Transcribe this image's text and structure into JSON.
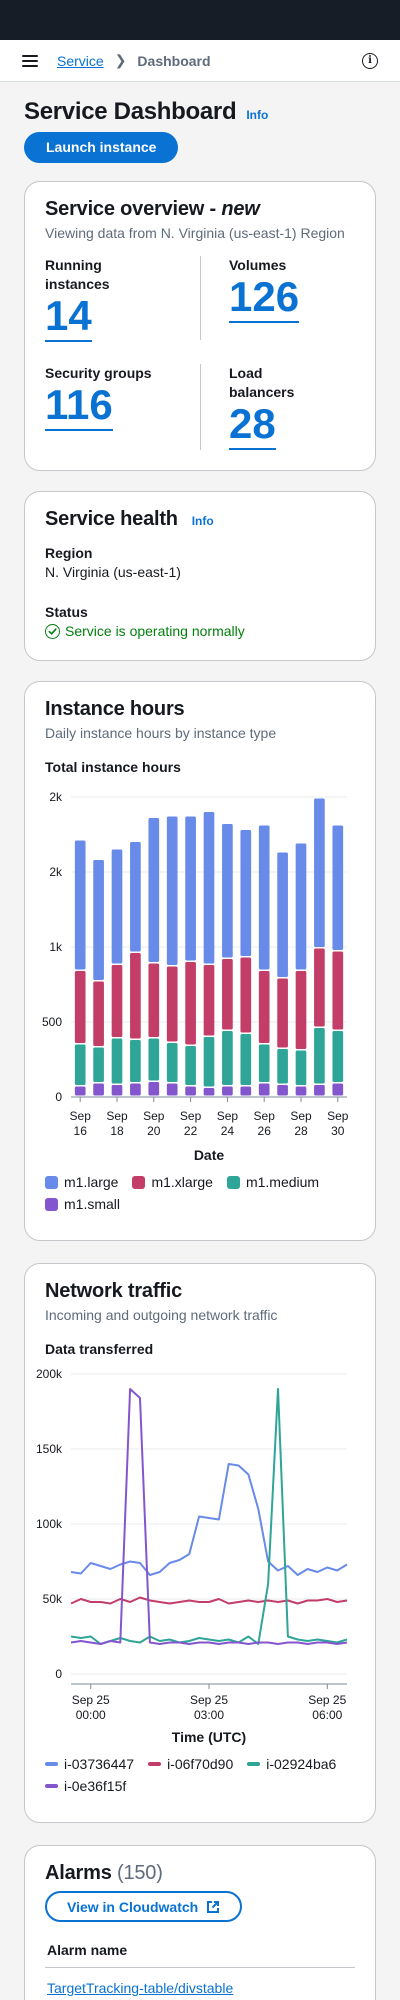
{
  "breadcrumb": {
    "service": "Service",
    "current": "Dashboard"
  },
  "header": {
    "title": "Service Dashboard",
    "info": "Info",
    "launch_button": "Launch instance"
  },
  "overview": {
    "title": "Service overview - ",
    "title_em": "new",
    "description": "Viewing data from N. Virginia (us-east-1) Region",
    "items": [
      {
        "label": "Running instances",
        "value": "14"
      },
      {
        "label": "Volumes",
        "value": "126"
      },
      {
        "label": "Security groups",
        "value": "116"
      },
      {
        "label": "Load balancers",
        "value": "28"
      }
    ]
  },
  "health": {
    "title": "Service health",
    "info": "Info",
    "region_label": "Region",
    "region_value": "N. Virginia (us-east-1)",
    "status_label": "Status",
    "status_value": "Service is operating normally"
  },
  "colors": {
    "accent": "#0972d3",
    "m1_large": "#688ae8",
    "m1_xlarge": "#c33d69",
    "m1_medium": "#2ea597",
    "m1_small": "#8456ce",
    "success": "#037f0c"
  },
  "instance_hours": {
    "title": "Instance hours",
    "description": "Daily instance hours by instance type",
    "subtitle": "Total instance hours"
  },
  "network": {
    "title": "Network traffic",
    "description": "Incoming and outgoing network traffic",
    "subtitle": "Data transferred"
  },
  "alarms": {
    "title": "Alarms",
    "count": "(150)",
    "button": "View in Cloudwatch",
    "column": "Alarm name",
    "first_row": "TargetTracking-table/divstable"
  },
  "chart_data": [
    {
      "type": "bar",
      "stacked": true,
      "xlabel": "Date",
      "ylabel": "",
      "ylim": [
        0,
        2000
      ],
      "y_ticks": [
        0,
        500,
        1000,
        1500,
        2000
      ],
      "y_tick_labels": [
        "0",
        "500",
        "1k",
        "2k",
        "2k"
      ],
      "categories": [
        "Sep 16",
        "Sep 17",
        "Sep 18",
        "Sep 19",
        "Sep 20",
        "Sep 21",
        "Sep 22",
        "Sep 23",
        "Sep 24",
        "Sep 25",
        "Sep 26",
        "Sep 27",
        "Sep 28",
        "Sep 29",
        "Sep 30"
      ],
      "x_tick_labels": [
        "Sep 16",
        "Sep 18",
        "Sep 20",
        "Sep 22",
        "Sep 24",
        "Sep 26",
        "Sep 28",
        "Sep 30"
      ],
      "series": [
        {
          "name": "m1.small",
          "color_key": "m1_small",
          "values": [
            70,
            90,
            80,
            90,
            100,
            90,
            70,
            60,
            70,
            70,
            90,
            80,
            70,
            80,
            90
          ]
        },
        {
          "name": "m1.medium",
          "color_key": "m1_medium",
          "values": [
            280,
            240,
            310,
            290,
            290,
            270,
            270,
            340,
            370,
            350,
            260,
            240,
            240,
            380,
            350
          ]
        },
        {
          "name": "m1.xlarge",
          "color_key": "m1_xlarge",
          "values": [
            490,
            440,
            490,
            580,
            500,
            510,
            560,
            480,
            480,
            510,
            490,
            470,
            530,
            530,
            530
          ]
        },
        {
          "name": "m1.large",
          "color_key": "m1_large",
          "values": [
            870,
            810,
            770,
            740,
            970,
            1000,
            970,
            1020,
            900,
            850,
            970,
            840,
            850,
            1000,
            840
          ]
        }
      ],
      "legend": "bottom"
    },
    {
      "type": "line",
      "xlabel": "Time (UTC)",
      "ylabel": "",
      "ylim": [
        0,
        200000
      ],
      "y_ticks": [
        0,
        50000,
        100000,
        150000,
        200000
      ],
      "y_tick_labels": [
        "0",
        "50k",
        "100k",
        "150k",
        "200k"
      ],
      "x_range": [
        -0.5,
        6.5
      ],
      "x_ticks": [
        0,
        3,
        6
      ],
      "x_tick_labels": [
        [
          "Sep 25",
          "00:00"
        ],
        [
          "Sep 25",
          "03:00"
        ],
        [
          "Sep 25",
          "06:00"
        ]
      ],
      "series": [
        {
          "name": "i-03736447",
          "color_key": "m1_large",
          "x": [
            -0.5,
            -0.25,
            0,
            0.25,
            0.5,
            0.75,
            1,
            1.25,
            1.5,
            1.75,
            2,
            2.25,
            2.5,
            2.75,
            3,
            3.25,
            3.5,
            3.75,
            4,
            4.25,
            4.5,
            4.75,
            5,
            5.25,
            5.5,
            5.75,
            6,
            6.25,
            6.5
          ],
          "y": [
            68000,
            67000,
            74000,
            72000,
            70000,
            73000,
            75000,
            74000,
            66000,
            68000,
            74000,
            76000,
            80000,
            105000,
            104000,
            103000,
            140000,
            139000,
            133000,
            110000,
            75000,
            69000,
            72000,
            66000,
            70000,
            68000,
            71000,
            69000,
            73000
          ]
        },
        {
          "name": "i-06f70d90",
          "color_key": "m1_xlarge",
          "x": [
            -0.5,
            -0.25,
            0,
            0.25,
            0.5,
            0.75,
            1,
            1.25,
            1.5,
            1.75,
            2,
            2.25,
            2.5,
            2.75,
            3,
            3.25,
            3.5,
            3.75,
            4,
            4.25,
            4.5,
            4.75,
            5,
            5.25,
            5.5,
            5.75,
            6,
            6.25,
            6.5
          ],
          "y": [
            47000,
            50000,
            48000,
            48000,
            47000,
            50000,
            48000,
            51000,
            49000,
            48000,
            47000,
            48000,
            49000,
            48000,
            48000,
            50000,
            47000,
            48000,
            49000,
            48000,
            49000,
            48000,
            49000,
            47000,
            49000,
            49000,
            50000,
            48000,
            49000
          ]
        },
        {
          "name": "i-02924ba6",
          "color_key": "m1_medium",
          "x": [
            -0.5,
            -0.25,
            0,
            0.25,
            0.5,
            0.75,
            1,
            1.25,
            1.5,
            1.75,
            2,
            2.25,
            2.5,
            2.75,
            3,
            3.25,
            3.5,
            3.75,
            4,
            4.25,
            4.5,
            4.75,
            5,
            5.25,
            5.5,
            5.75,
            6,
            6.25,
            6.5
          ],
          "y": [
            25000,
            24000,
            25000,
            20000,
            22000,
            24000,
            22000,
            21000,
            25000,
            22000,
            23000,
            21000,
            22000,
            24000,
            23000,
            22000,
            23000,
            21000,
            25000,
            20000,
            60000,
            190000,
            25000,
            23000,
            22000,
            23000,
            22000,
            21000,
            23000
          ]
        },
        {
          "name": "i-0e36f15f",
          "color_key": "m1_small",
          "x": [
            -0.5,
            -0.25,
            0,
            0.25,
            0.5,
            0.75,
            1,
            1.25,
            1.5,
            1.75,
            2,
            2.25,
            2.5,
            2.75,
            3,
            3.25,
            3.5,
            3.75,
            4,
            4.25,
            4.5,
            4.75,
            5,
            5.25,
            5.5,
            5.75,
            6,
            6.25,
            6.5
          ],
          "y": [
            21000,
            22000,
            21000,
            20000,
            22000,
            21000,
            190000,
            184000,
            21000,
            20000,
            21000,
            21000,
            20000,
            21000,
            21000,
            20000,
            21000,
            21000,
            20000,
            21000,
            21000,
            20000,
            21000,
            21000,
            20000,
            21000,
            21000,
            20000,
            21000
          ]
        }
      ],
      "legend": "bottom"
    }
  ]
}
